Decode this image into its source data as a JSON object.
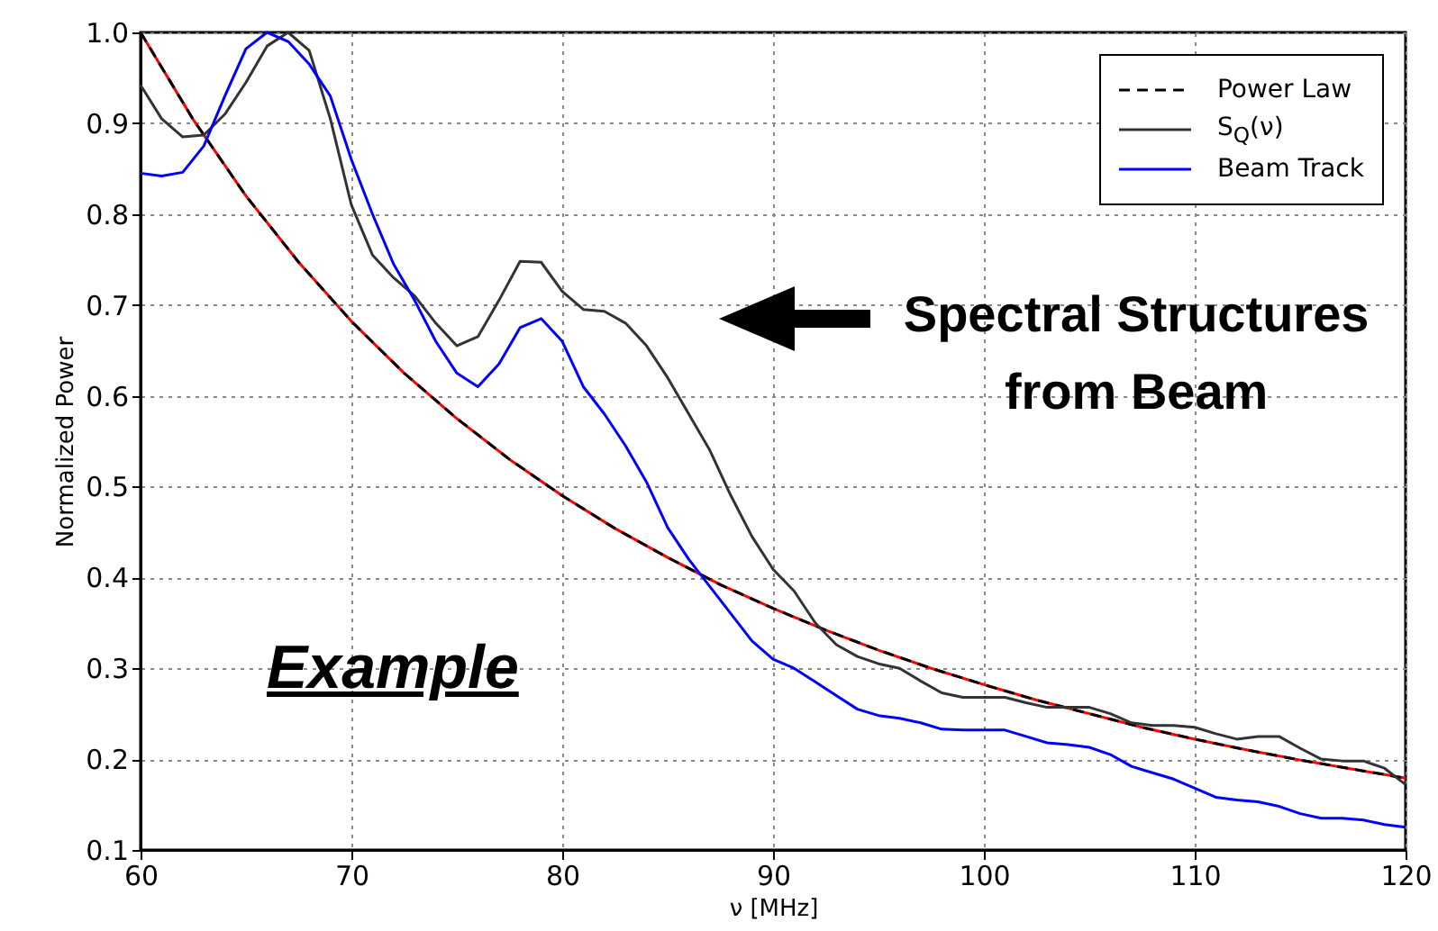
{
  "chart_data": {
    "type": "line",
    "xlabel": "ν [MHz]",
    "ylabel": "Normalized Power",
    "xlim": [
      60,
      120
    ],
    "xticks": [
      60,
      70,
      80,
      90,
      100,
      110,
      120
    ],
    "ylim": [
      0.1,
      1.0
    ],
    "yticks": [
      0.1,
      0.2,
      0.3,
      0.4,
      0.5,
      0.6,
      0.7,
      0.8,
      0.9,
      {
        "value": 1.0,
        "label": "1.0"
      }
    ],
    "grid": true,
    "legend": "top right",
    "series": [
      {
        "color": "#ff0000",
        "line_style": "solid",
        "x": [
          60,
          62.5,
          65,
          67.5,
          70,
          72.5,
          75,
          77.5,
          80,
          82.5,
          85,
          87.5,
          90,
          92.5,
          95,
          97.5,
          100,
          102.5,
          105,
          107.5,
          110,
          112.5,
          115,
          117.5,
          120
        ],
        "values": [
          1.0,
          0.904,
          0.82,
          0.747,
          0.682,
          0.625,
          0.575,
          0.53,
          0.49,
          0.454,
          0.422,
          0.392,
          0.366,
          0.342,
          0.32,
          0.3,
          0.282,
          0.265,
          0.25,
          0.235,
          0.222,
          0.21,
          0.199,
          0.189,
          0.179
        ]
      },
      {
        "name": "Power Law",
        "color": "#000000",
        "line_style": "dashed",
        "x": [
          60,
          62.5,
          65,
          67.5,
          70,
          72.5,
          75,
          77.5,
          80,
          82.5,
          85,
          87.5,
          90,
          92.5,
          95,
          97.5,
          100,
          102.5,
          105,
          107.5,
          110,
          112.5,
          115,
          117.5,
          120
        ],
        "values": [
          1.0,
          0.904,
          0.82,
          0.747,
          0.682,
          0.625,
          0.575,
          0.53,
          0.49,
          0.454,
          0.422,
          0.392,
          0.366,
          0.342,
          0.32,
          0.3,
          0.282,
          0.265,
          0.25,
          0.235,
          0.222,
          0.21,
          0.199,
          0.189,
          0.179
        ]
      },
      {
        "name": "S$_{Q}$(ν)",
        "color": "#333333",
        "line_style": "solid",
        "x": [
          60,
          61,
          62,
          63,
          64,
          65,
          66,
          67,
          68,
          69,
          70,
          71,
          72,
          73,
          74,
          75,
          76,
          77,
          78,
          79,
          80,
          81,
          82,
          83,
          84,
          85,
          86,
          87,
          88,
          89,
          90,
          91,
          92,
          93,
          94,
          95,
          96,
          97,
          98,
          99,
          100,
          101,
          102,
          103,
          104,
          105,
          106,
          107,
          108,
          109,
          110,
          111,
          112,
          113,
          114,
          115,
          116,
          117,
          118,
          119,
          120
        ],
        "values": [
          0.942,
          0.905,
          0.885,
          0.887,
          0.91,
          0.945,
          0.985,
          1.0,
          0.98,
          0.905,
          0.81,
          0.755,
          0.73,
          0.71,
          0.68,
          0.655,
          0.665,
          0.705,
          0.748,
          0.747,
          0.715,
          0.695,
          0.693,
          0.68,
          0.655,
          0.62,
          0.58,
          0.54,
          0.49,
          0.445,
          0.409,
          0.385,
          0.35,
          0.326,
          0.313,
          0.305,
          0.3,
          0.286,
          0.273,
          0.268,
          0.268,
          0.268,
          0.262,
          0.257,
          0.257,
          0.257,
          0.25,
          0.24,
          0.237,
          0.237,
          0.235,
          0.228,
          0.222,
          0.225,
          0.225,
          0.212,
          0.2,
          0.198,
          0.198,
          0.19,
          0.172
        ]
      },
      {
        "name": "Beam Track",
        "color": "#0000ff",
        "line_style": "solid",
        "x": [
          60,
          61,
          62,
          63,
          64,
          65,
          66,
          67,
          68,
          69,
          70,
          71,
          72,
          73,
          74,
          75,
          76,
          77,
          78,
          79,
          80,
          81,
          82,
          83,
          84,
          85,
          86,
          87,
          88,
          89,
          90,
          91,
          92,
          93,
          94,
          95,
          96,
          97,
          98,
          99,
          100,
          101,
          102,
          103,
          104,
          105,
          106,
          107,
          108,
          109,
          110,
          111,
          112,
          113,
          114,
          115,
          116,
          117,
          118,
          119,
          120
        ],
        "values": [
          0.845,
          0.842,
          0.846,
          0.875,
          0.93,
          0.982,
          1.0,
          0.99,
          0.965,
          0.93,
          0.86,
          0.8,
          0.745,
          0.705,
          0.66,
          0.625,
          0.61,
          0.635,
          0.675,
          0.685,
          0.66,
          0.61,
          0.58,
          0.545,
          0.505,
          0.455,
          0.42,
          0.39,
          0.36,
          0.33,
          0.31,
          0.3,
          0.285,
          0.27,
          0.255,
          0.248,
          0.245,
          0.24,
          0.233,
          0.232,
          0.232,
          0.232,
          0.225,
          0.218,
          0.216,
          0.213,
          0.205,
          0.192,
          0.185,
          0.178,
          0.168,
          0.158,
          0.155,
          0.153,
          0.148,
          0.14,
          0.135,
          0.135,
          0.133,
          0.128,
          0.125
        ]
      }
    ],
    "annotations": [
      "Example",
      "Spectral Structures\nfrom Beam"
    ]
  }
}
